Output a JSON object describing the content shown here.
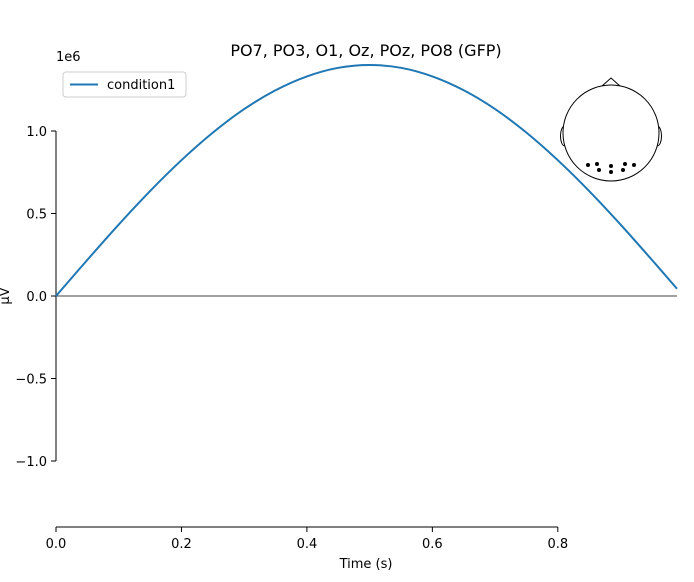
{
  "chart_data": {
    "type": "line",
    "title": "PO7, PO3, O1, Oz, POz, PO8 (GFP)",
    "xlabel": "Time (s)",
    "ylabel": "µV",
    "y_multiplier": "1e6",
    "xlim": [
      0,
      0.99
    ],
    "ylim": [
      -1.4,
      1.4
    ],
    "x_ticks": [
      0.0,
      0.2,
      0.4,
      0.6,
      0.8
    ],
    "x_tick_labels": [
      "0.0",
      "0.2",
      "0.4",
      "0.6",
      "0.8"
    ],
    "y_ticks": [
      -1.0,
      -0.5,
      0.0,
      0.5,
      1.0
    ],
    "y_tick_labels": [
      "−1.0",
      "−0.5",
      "0.0",
      "0.5",
      "1.0"
    ],
    "grid": false,
    "legend_position": "top-left",
    "zero_line": true,
    "series": [
      {
        "name": "condition1",
        "color": "#1f77b4",
        "x": [
          0,
          0.05,
          0.1,
          0.15,
          0.2,
          0.25,
          0.3,
          0.35,
          0.4,
          0.45,
          0.5,
          0.55,
          0.6,
          0.65,
          0.7,
          0.75,
          0.8,
          0.85,
          0.9,
          0.95,
          0.99
        ],
        "y": [
          0,
          0.219,
          0.433,
          0.636,
          0.823,
          0.99,
          1.133,
          1.247,
          1.331,
          1.383,
          1.4,
          1.383,
          1.331,
          1.247,
          1.133,
          0.99,
          0.823,
          0.636,
          0.433,
          0.219,
          0.044
        ]
      }
    ],
    "sensor_inset": {
      "position": "top-right",
      "sensors": 6
    }
  }
}
